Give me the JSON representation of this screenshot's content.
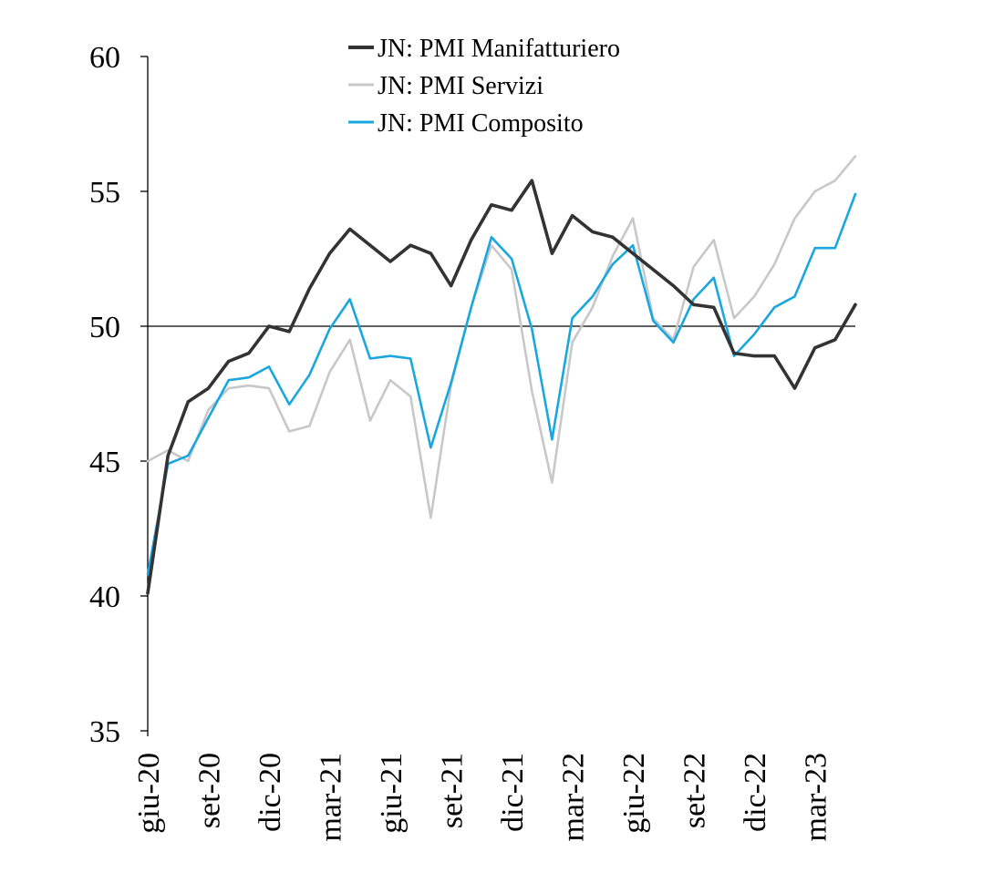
{
  "chart_data": {
    "type": "line",
    "title": "",
    "xlabel": "",
    "ylabel": "",
    "ylim": [
      35,
      60
    ],
    "yticks": [
      "35",
      "40",
      "45",
      "50",
      "55",
      "60"
    ],
    "reference_line": 50,
    "grid": false,
    "legend_position": "top",
    "x": [
      "giu-20",
      "lug-20",
      "ago-20",
      "set-20",
      "ott-20",
      "nov-20",
      "dic-20",
      "gen-21",
      "feb-21",
      "mar-21",
      "apr-21",
      "mag-21",
      "giu-21",
      "lug-21",
      "ago-21",
      "set-21",
      "ott-21",
      "nov-21",
      "dic-21",
      "gen-22",
      "feb-22",
      "mar-22",
      "apr-22",
      "mag-22",
      "giu-22",
      "lug-22",
      "ago-22",
      "set-22",
      "ott-22",
      "nov-22",
      "dic-22",
      "gen-23",
      "feb-23",
      "mar-23",
      "apr-23",
      "mag-23"
    ],
    "x_tick_labels": [
      {
        "index": 0,
        "label": "giu-20"
      },
      {
        "index": 3,
        "label": "set-20"
      },
      {
        "index": 6,
        "label": "dic-20"
      },
      {
        "index": 9,
        "label": "mar-21"
      },
      {
        "index": 12,
        "label": "giu-21"
      },
      {
        "index": 15,
        "label": "set-21"
      },
      {
        "index": 18,
        "label": "dic-21"
      },
      {
        "index": 21,
        "label": "mar-22"
      },
      {
        "index": 24,
        "label": "giu-22"
      },
      {
        "index": 27,
        "label": "set-22"
      },
      {
        "index": 30,
        "label": "dic-22"
      },
      {
        "index": 33,
        "label": "mar-23"
      }
    ],
    "series": [
      {
        "name": "JN: PMI Manifatturiero",
        "color": "#333333",
        "values": [
          40.1,
          45.2,
          47.2,
          47.7,
          48.7,
          49.0,
          50.0,
          49.8,
          51.4,
          52.7,
          53.6,
          53.0,
          52.4,
          53.0,
          52.7,
          51.5,
          53.2,
          54.5,
          54.3,
          55.4,
          52.7,
          54.1,
          53.5,
          53.3,
          52.7,
          52.1,
          51.5,
          50.8,
          50.7,
          49.0,
          48.9,
          48.9,
          47.7,
          49.2,
          49.5,
          50.8
        ]
      },
      {
        "name": "JN: PMI Servizi",
        "color": "#c8c8c8",
        "values": [
          45.0,
          45.4,
          45.0,
          46.9,
          47.7,
          47.8,
          47.7,
          46.1,
          46.3,
          48.3,
          49.5,
          46.5,
          48.0,
          47.4,
          42.9,
          47.8,
          50.7,
          53.0,
          52.1,
          47.6,
          44.2,
          49.4,
          50.7,
          52.6,
          54.0,
          50.3,
          49.5,
          52.2,
          53.2,
          50.3,
          51.1,
          52.3,
          54.0,
          55.0,
          55.4,
          56.3
        ]
      },
      {
        "name": "JN: PMI Composito",
        "color": "#1aa7e0",
        "values": [
          40.8,
          44.9,
          45.2,
          46.6,
          48.0,
          48.1,
          48.5,
          47.1,
          48.2,
          49.9,
          51.0,
          48.8,
          48.9,
          48.8,
          45.5,
          47.9,
          50.7,
          53.3,
          52.5,
          49.9,
          45.8,
          50.3,
          51.1,
          52.3,
          53.0,
          50.2,
          49.4,
          51.0,
          51.8,
          48.9,
          49.7,
          50.7,
          51.1,
          52.9,
          52.9,
          54.9
        ]
      }
    ]
  }
}
